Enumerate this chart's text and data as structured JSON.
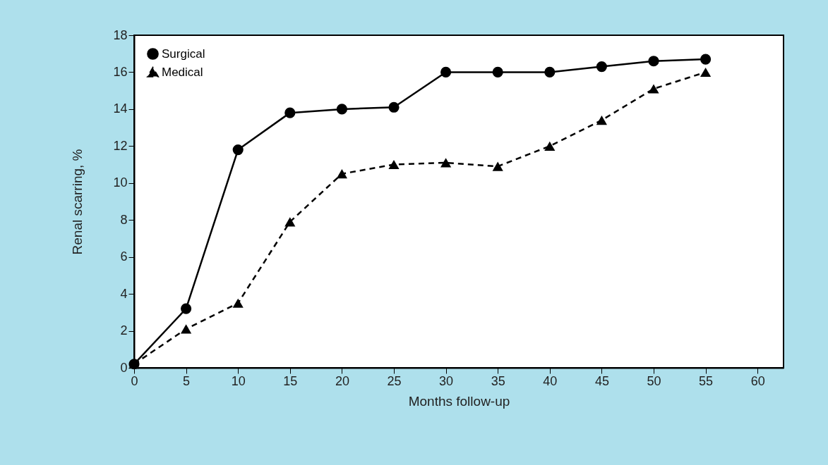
{
  "chart_data": {
    "type": "line",
    "xlabel": "Months follow-up",
    "ylabel": "Renal scarring, %",
    "x": [
      0,
      5,
      10,
      15,
      20,
      25,
      30,
      35,
      40,
      45,
      50,
      55
    ],
    "series": [
      {
        "name": "Surgical",
        "color": "#000000",
        "marker": "circle",
        "line_style": "solid",
        "values": [
          0.2,
          3.2,
          11.8,
          13.8,
          14.0,
          14.1,
          16.0,
          16.0,
          16.0,
          16.3,
          16.6,
          16.7
        ]
      },
      {
        "name": "Medical",
        "color": "#000000",
        "marker": "triangle",
        "line_style": "dashed",
        "values": [
          0.2,
          2.1,
          3.5,
          7.9,
          10.5,
          11.0,
          11.1,
          10.9,
          12.0,
          13.4,
          15.1,
          16.0
        ]
      }
    ],
    "xlim": [
      0,
      62.5
    ],
    "xticks": [
      0,
      5,
      10,
      15,
      20,
      25,
      30,
      35,
      40,
      45,
      50,
      55,
      60
    ],
    "ylim": [
      0,
      18
    ],
    "yticks": [
      0,
      2,
      4,
      6,
      8,
      10,
      12,
      14,
      16,
      18
    ],
    "grid": false,
    "legend": "top left"
  }
}
